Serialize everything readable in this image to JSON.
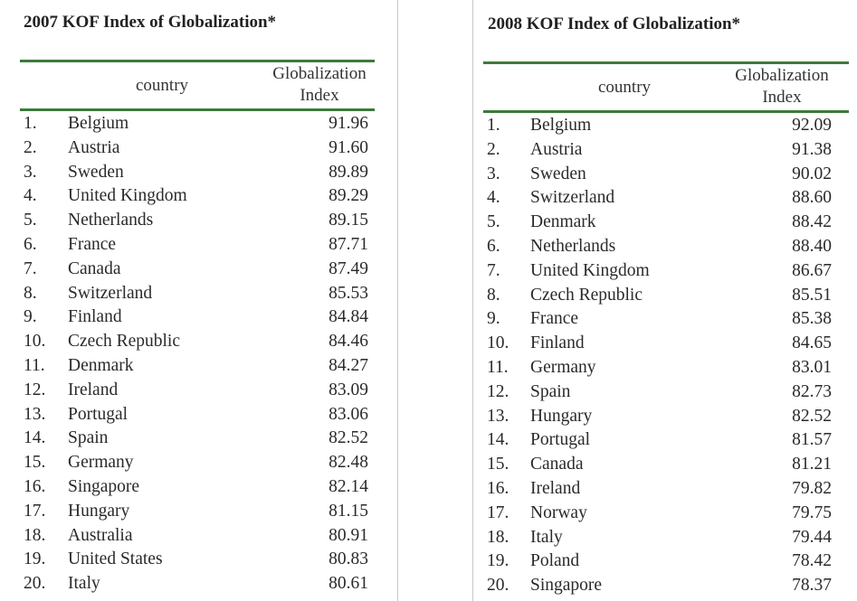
{
  "tables": [
    {
      "title": "2007 KOF Index of Globalization*",
      "header": {
        "country": "country",
        "index_line1": "Globalization",
        "index_line2": "Index"
      },
      "rows": [
        {
          "rank": "1.",
          "country": "Belgium",
          "value": "91.96"
        },
        {
          "rank": "2.",
          "country": "Austria",
          "value": "91.60"
        },
        {
          "rank": "3.",
          "country": "Sweden",
          "value": "89.89"
        },
        {
          "rank": "4.",
          "country": "United Kingdom",
          "value": "89.29"
        },
        {
          "rank": "5.",
          "country": "Netherlands",
          "value": "89.15"
        },
        {
          "rank": "6.",
          "country": "France",
          "value": "87.71"
        },
        {
          "rank": "7.",
          "country": "Canada",
          "value": "87.49"
        },
        {
          "rank": "8.",
          "country": "Switzerland",
          "value": "85.53"
        },
        {
          "rank": "9.",
          "country": "Finland",
          "value": "84.84"
        },
        {
          "rank": "10.",
          "country": "Czech Republic",
          "value": "84.46"
        },
        {
          "rank": "11.",
          "country": "Denmark",
          "value": "84.27"
        },
        {
          "rank": "12.",
          "country": "Ireland",
          "value": "83.09"
        },
        {
          "rank": "13.",
          "country": "Portugal",
          "value": "83.06"
        },
        {
          "rank": "14.",
          "country": "Spain",
          "value": "82.52"
        },
        {
          "rank": "15.",
          "country": "Germany",
          "value": "82.48"
        },
        {
          "rank": "16.",
          "country": "Singapore",
          "value": "82.14"
        },
        {
          "rank": "17.",
          "country": "Hungary",
          "value": "81.15"
        },
        {
          "rank": "18.",
          "country": "Australia",
          "value": "80.91"
        },
        {
          "rank": "19.",
          "country": "United States",
          "value": "80.83"
        },
        {
          "rank": "20.",
          "country": "Italy",
          "value": "80.61"
        }
      ]
    },
    {
      "title": "2008 KOF Index of Globalization*",
      "header": {
        "country": "country",
        "index_line1": "Globalization",
        "index_line2": "Index"
      },
      "rows": [
        {
          "rank": "1.",
          "country": "Belgium",
          "value": "92.09"
        },
        {
          "rank": "2.",
          "country": "Austria",
          "value": "91.38"
        },
        {
          "rank": "3.",
          "country": "Sweden",
          "value": "90.02"
        },
        {
          "rank": "4.",
          "country": "Switzerland",
          "value": "88.60"
        },
        {
          "rank": "5.",
          "country": "Denmark",
          "value": "88.42"
        },
        {
          "rank": "6.",
          "country": "Netherlands",
          "value": "88.40"
        },
        {
          "rank": "7.",
          "country": "United Kingdom",
          "value": "86.67"
        },
        {
          "rank": "8.",
          "country": "Czech Republic",
          "value": "85.51"
        },
        {
          "rank": "9.",
          "country": "France",
          "value": "85.38"
        },
        {
          "rank": "10.",
          "country": "Finland",
          "value": "84.65"
        },
        {
          "rank": "11.",
          "country": "Germany",
          "value": "83.01"
        },
        {
          "rank": "12.",
          "country": "Spain",
          "value": "82.73"
        },
        {
          "rank": "13.",
          "country": "Hungary",
          "value": "82.52"
        },
        {
          "rank": "14.",
          "country": "Portugal",
          "value": "81.57"
        },
        {
          "rank": "15.",
          "country": "Canada",
          "value": "81.21"
        },
        {
          "rank": "16.",
          "country": "Ireland",
          "value": "79.82"
        },
        {
          "rank": "17.",
          "country": "Norway",
          "value": "79.75"
        },
        {
          "rank": "18.",
          "country": "Italy",
          "value": "79.44"
        },
        {
          "rank": "19.",
          "country": "Poland",
          "value": "78.42"
        },
        {
          "rank": "20.",
          "country": "Singapore",
          "value": "78.37"
        }
      ]
    }
  ],
  "colors": {
    "rule": "#3b7a3b",
    "text": "#222222",
    "divider": "#c8c8c8"
  }
}
